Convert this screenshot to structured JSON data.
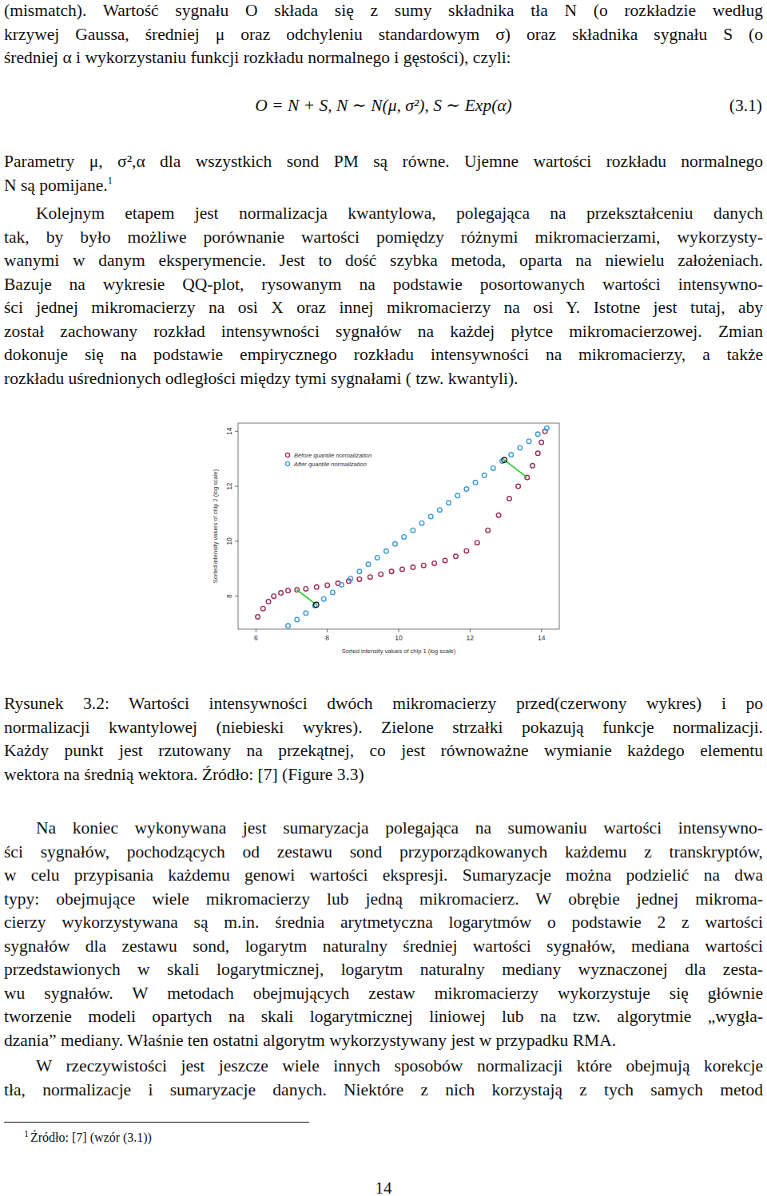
{
  "document": {
    "paragraph_1": {
      "lines": [
        "(mismatch). Wartość sygnału O składa się z sumy składnika tła N (o rozkładzie według",
        "krzywej Gaussa, średniej μ oraz odchyleniu standardowym σ) oraz składnika sygnału S (o",
        "średniej α i wykorzystaniu funkcji rozkładu normalnego i gęstości), czyli:"
      ]
    },
    "equation": {
      "text": "O = N + S, N ∼ N(μ, σ²), S ∼ Exp(α)",
      "number": "(3.1)"
    },
    "paragraph_2": {
      "lines": [
        "Parametry μ, σ²,α dla wszystkich sond PM są równe. Ujemne wartości rozkładu normalnego",
        "N są pomijane."
      ],
      "footnote_mark": "1"
    },
    "paragraph_3": {
      "lines": [
        "Kolejnym etapem jest normalizacja kwantylowa, polegająca na przekształceniu danych",
        "tak, by było możliwe porównanie wartości pomiędzy różnymi mikromacierzami, wykorzysty-",
        "wanymi w danym eksperymencie. Jest to dość szybka metoda, oparta na niewielu założeniach.",
        "Bazuje na wykresie QQ-plot, rysowanym na podstawie posortowanych wartości intensywno-",
        "ści jednej mikromacierzy na osi X oraz innej mikromacierzy na osi Y. Istotne jest tutaj, aby",
        "został zachowany rozkład intensywności sygnałów na każdej płytce mikromacierzowej. Zmian",
        "dokonuje się na podstawie empirycznego rozkładu intensywności na mikromacierzy, a także",
        "rozkładu uśrednionych odległości między tymi sygnałami ( tzw. kwantyli)."
      ]
    },
    "figure_caption": {
      "lines": [
        "Rysunek 3.2: Wartości intensywności dwóch mikromacierzy przed(czerwony wykres) i po",
        "normalizacji kwantylowej (niebieski wykres). Zielone strzałki pokazują funkcje normalizacji.",
        "Każdy punkt jest rzutowany na przekątnej, co jest równoważne wymianie każdego elementu",
        "wektora na średnią wektora. Źródło: [7] (Figure 3.3)"
      ]
    },
    "paragraph_4": {
      "lines": [
        "Na koniec wykonywana jest sumaryzacja polegająca na sumowaniu wartości intensywno-",
        "ści sygnałów, pochodzących od zestawu sond przyporządkowanych każdemu z transkryptów,",
        "w celu przypisania każdemu genowi wartości ekspresji. Sumaryzacje można podzielić na dwa",
        "typy: obejmujące wiele mikromacierzy lub jedną mikromacierz. W obrębie jednej mikroma-",
        "cierzy wykorzystywana są m.in. średnia arytmetyczna logarytmów o podstawie 2 z wartości",
        "sygnałów dla zestawu sond, logarytm naturalny średniej wartości sygnałów, mediana wartości",
        "przedstawionych w skali logarytmicznej, logarytm naturalny mediany wyznaczonej dla zesta-",
        "wu sygnałów. W metodach obejmujących zestaw mikromacierzy wykorzystuje się głównie",
        "tworzenie modeli opartych na skali logarytmicznej liniowej lub na tzw. algorytmie „wygła-",
        "dzania” mediany. Właśnie ten ostatni algorytm wykorzystywany jest w przypadku RMA."
      ]
    },
    "paragraph_5": {
      "lines": [
        "W rzeczywistości jest jeszcze wiele innych sposobów normalizacji które obejmują korekcje",
        "tła, normalizacje i sumaryzacje danych. Niektóre z nich korzystają z tych samych metod"
      ]
    },
    "footnote": {
      "mark": "1",
      "text": "Źródło: [7] (wzór (3.1))"
    },
    "page_number": "14"
  },
  "chart_data": {
    "type": "scatter",
    "x_label": "Sorted intensity values of chip 1 (log scale)",
    "y_label": "Sorted intensity values of chip 2 (log scale)",
    "xlim": [
      5.5,
      14.5
    ],
    "ylim": [
      6.8,
      14.3
    ],
    "xticks": [
      6,
      8,
      10,
      12,
      14
    ],
    "yticks": [
      8,
      10,
      12,
      14
    ],
    "legend": "top-left",
    "series": [
      {
        "name": "Before quantile normalization",
        "color": "#9b2a5c",
        "marker": "circle",
        "x": [
          6.05,
          6.2,
          6.35,
          6.5,
          6.7,
          6.9,
          7.15,
          7.4,
          7.7,
          8.0,
          8.3,
          8.6,
          8.9,
          9.2,
          9.5,
          9.8,
          10.1,
          10.4,
          10.7,
          11.0,
          11.3,
          11.6,
          11.9,
          12.2,
          12.5,
          12.8,
          13.1,
          13.35,
          13.6,
          13.75,
          13.9,
          14.0,
          14.1
        ],
        "values": [
          7.25,
          7.55,
          7.8,
          8.0,
          8.12,
          8.2,
          8.23,
          8.27,
          8.33,
          8.4,
          8.47,
          8.55,
          8.62,
          8.7,
          8.8,
          8.9,
          8.98,
          9.05,
          9.12,
          9.2,
          9.3,
          9.45,
          9.65,
          9.95,
          10.4,
          10.95,
          11.55,
          12.0,
          12.32,
          12.75,
          13.2,
          13.6,
          14.0
        ]
      },
      {
        "name": "After quantile normalization",
        "color": "#3b9bd8",
        "marker": "circle",
        "x": [
          6.9,
          7.15,
          7.4,
          7.65,
          7.9,
          8.15,
          8.4,
          8.65,
          8.9,
          9.15,
          9.4,
          9.65,
          9.9,
          10.15,
          10.4,
          10.65,
          10.9,
          11.15,
          11.4,
          11.65,
          11.9,
          12.15,
          12.4,
          12.65,
          12.9,
          13.15,
          13.4,
          13.65,
          13.9,
          14.15
        ],
        "values": [
          6.92,
          7.15,
          7.38,
          7.66,
          7.9,
          8.14,
          8.41,
          8.64,
          8.9,
          9.16,
          9.4,
          9.64,
          9.9,
          10.16,
          10.4,
          10.66,
          10.9,
          11.14,
          11.4,
          11.66,
          11.9,
          12.14,
          12.4,
          12.66,
          12.92,
          13.15,
          13.4,
          13.64,
          13.9,
          14.12
        ]
      }
    ],
    "arrows": [
      {
        "color": "#2ecc2e",
        "x": [
          7.15,
          7.69
        ],
        "y": [
          8.23,
          7.69
        ]
      },
      {
        "color": "#2ecc2e",
        "x": [
          13.6,
          12.96
        ],
        "y": [
          12.32,
          12.96
        ]
      }
    ]
  }
}
